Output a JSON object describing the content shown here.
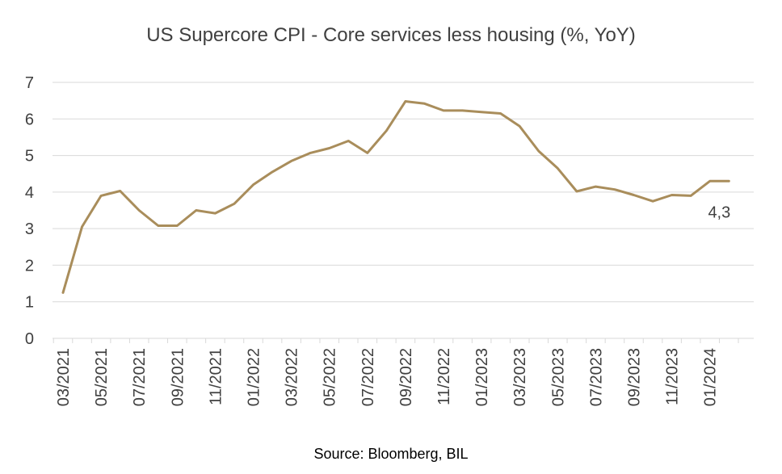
{
  "chart_data": {
    "type": "line",
    "title": "US Supercore CPI - Core services less housing (%, YoY)",
    "source": "Source: Bloomberg, BIL",
    "xlabel": "",
    "ylabel": "",
    "ylim": [
      0,
      7
    ],
    "yticks": [
      "0",
      "1",
      "2",
      "3",
      "4",
      "5",
      "6",
      "7"
    ],
    "xtick_labels": [
      "03/2021",
      "05/2021",
      "07/2021",
      "09/2021",
      "11/2021",
      "01/2022",
      "03/2022",
      "05/2022",
      "07/2022",
      "09/2022",
      "11/2022",
      "01/2023",
      "03/2023",
      "05/2023",
      "07/2023",
      "09/2023",
      "11/2023",
      "01/2024"
    ],
    "grid": "horizontal",
    "line_color": "#A98D5B",
    "end_label": "4,3",
    "series": [
      {
        "x": [
          "03/2021",
          "04/2021",
          "05/2021",
          "06/2021",
          "07/2021",
          "08/2021",
          "09/2021",
          "10/2021",
          "11/2021",
          "12/2021",
          "01/2022",
          "02/2022",
          "03/2022",
          "04/2022",
          "05/2022",
          "06/2022",
          "07/2022",
          "08/2022",
          "09/2022",
          "10/2022",
          "11/2022",
          "12/2022",
          "01/2023",
          "02/2023",
          "03/2023",
          "04/2023",
          "05/2023",
          "06/2023",
          "07/2023",
          "08/2023",
          "09/2023",
          "10/2023",
          "11/2023",
          "12/2023",
          "01/2024",
          "02/2024"
        ],
        "values": [
          1.25,
          3.05,
          3.9,
          4.03,
          3.5,
          3.08,
          3.08,
          3.5,
          3.42,
          3.68,
          4.2,
          4.55,
          4.85,
          5.07,
          5.2,
          5.4,
          5.07,
          5.68,
          6.48,
          6.42,
          6.23,
          6.23,
          6.19,
          6.15,
          5.8,
          5.12,
          4.65,
          4.02,
          4.15,
          4.07,
          3.92,
          3.75,
          3.92,
          3.9,
          4.3,
          4.3
        ]
      }
    ]
  }
}
